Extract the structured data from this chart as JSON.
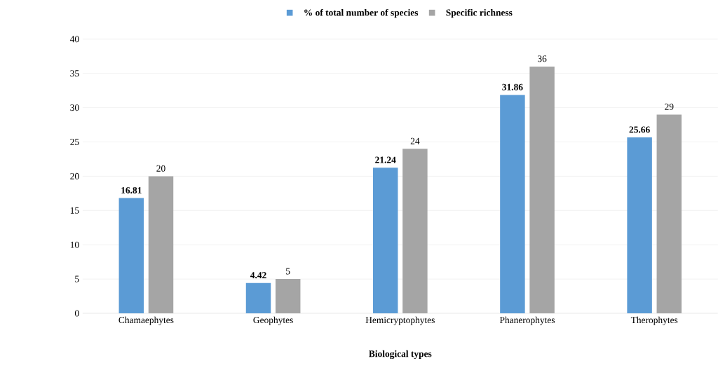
{
  "chart_data": {
    "type": "bar",
    "xlabel": "Biological types",
    "categories": [
      "Chamaephytes",
      "Geophytes",
      "Hemicryptophytes",
      "Phanerophytes",
      "Therophytes"
    ],
    "series": [
      {
        "name": "% of total number of species",
        "color": "#5b9bd5",
        "values": [
          16.81,
          4.42,
          21.24,
          31.86,
          25.66
        ]
      },
      {
        "name": "Specific richness",
        "color": "#a5a5a5",
        "values": [
          20,
          5,
          24,
          36,
          29
        ]
      }
    ],
    "ylim": [
      0,
      40
    ],
    "yticks": [
      0,
      5,
      10,
      15,
      20,
      25,
      30,
      35,
      40
    ],
    "grid": "y",
    "legend": "top",
    "data_labels": true
  }
}
